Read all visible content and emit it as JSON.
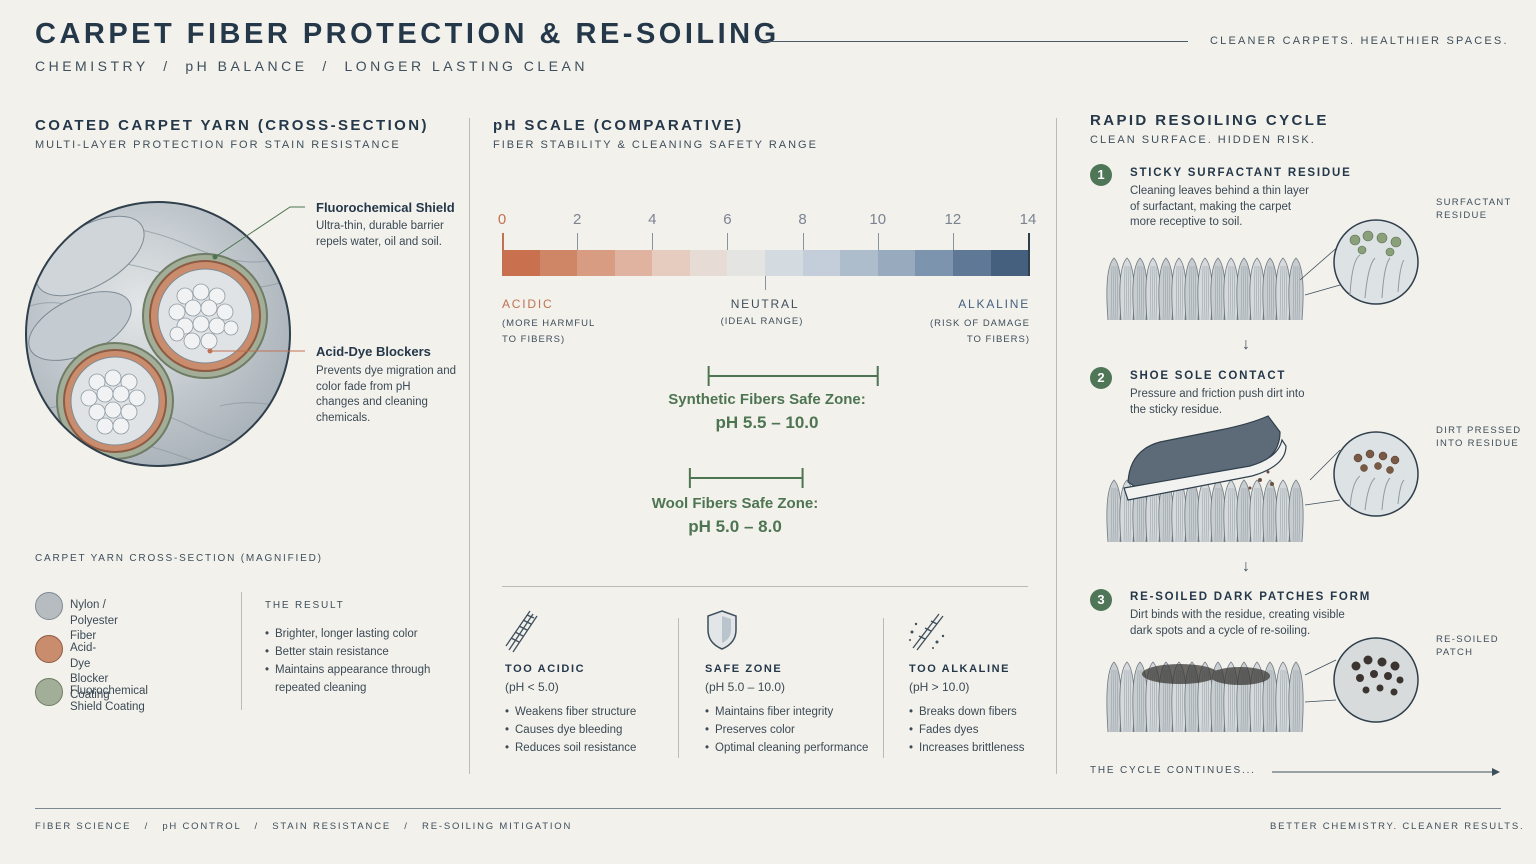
{
  "header": {
    "title": "CARPET FIBER PROTECTION & RE-SOILING",
    "subtitle": "CHEMISTRY  /  pH BALANCE  /  LONGER LASTING CLEAN",
    "tagline": "CLEANER CARPETS. HEALTHIER SPACES."
  },
  "yarn": {
    "title": "COATED CARPET YARN (CROSS-SECTION)",
    "subtitle": "MULTI-LAYER PROTECTION FOR STAIN RESISTANCE",
    "callouts": [
      {
        "title": "Fluorochemical Shield",
        "text": "Ultra-thin, durable barrier repels water, oil and soil."
      },
      {
        "title": "Acid-Dye Blockers",
        "text": "Prevents dye migration and color fade from pH changes and cleaning chemicals."
      }
    ],
    "caption": "CARPET YARN CROSS-SECTION (MAGNIFIED)",
    "legend": [
      {
        "label": "Nylon / Polyester Fiber",
        "color": "#b7bcc0"
      },
      {
        "label": "Acid-Dye Blocker Coating",
        "color": "#c98c6c"
      },
      {
        "label": "Fluorochemical Shield Coating",
        "color": "#a3ae98"
      }
    ],
    "result": {
      "title": "THE RESULT",
      "items": [
        "Brighter, longer lasting color",
        "Better stain resistance",
        "Maintains appearance through repeated cleaning"
      ]
    }
  },
  "ph": {
    "title": "pH SCALE (COMPARATIVE)",
    "subtitle": "FIBER STABILITY & CLEANING SAFETY RANGE",
    "ticks": [
      "0",
      "2",
      "4",
      "6",
      "8",
      "10",
      "12",
      "14"
    ],
    "colors": [
      "#c9714f",
      "#cf8667",
      "#d89c82",
      "#e0b3a0",
      "#e6cbbf",
      "#e7dcd5",
      "#e4e4e2",
      "#d4dbe0",
      "#c3ceda",
      "#aebdcc",
      "#97aabe",
      "#7c94ad",
      "#5f7896",
      "#45607f"
    ],
    "labels": {
      "acidic": "ACIDIC",
      "acidic_note": "(MORE HARMFUL TO FIBERS)",
      "neutral": "NEUTRAL",
      "neutral_note": "(IDEAL RANGE)",
      "alkaline": "ALKALINE",
      "alkaline_note": "(RISK OF DAMAGE TO FIBERS)"
    },
    "zones": [
      {
        "title": "Synthetic Fibers Safe Zone:",
        "value": "pH 5.5 – 10.0",
        "min": 5.5,
        "max": 10.0
      },
      {
        "title": "Wool Fibers Safe Zone:",
        "value": "pH 5.0 – 8.0",
        "min": 5.0,
        "max": 8.0
      }
    ],
    "categories": [
      {
        "title": "TOO ACIDIC",
        "range": "(pH < 5.0)",
        "icon": "fiber-damage-icon",
        "items": [
          "Weakens fiber structure",
          "Causes dye bleeding",
          "Reduces soil resistance"
        ]
      },
      {
        "title": "SAFE ZONE",
        "range": "(pH 5.0 – 10.0)",
        "icon": "shield-icon",
        "items": [
          "Maintains fiber integrity",
          "Preserves color",
          "Optimal cleaning performance"
        ]
      },
      {
        "title": "TOO ALKALINE",
        "range": "(pH > 10.0)",
        "icon": "brittle-fiber-icon",
        "items": [
          "Breaks down fibers",
          "Fades dyes",
          "Increases brittleness"
        ]
      }
    ]
  },
  "cycle": {
    "title": "RAPID RESOILING CYCLE",
    "subtitle": "CLEAN SURFACE. HIDDEN RISK.",
    "steps": [
      {
        "num": "1",
        "title": "STICKY SURFACTANT RESIDUE",
        "text": "Cleaning leaves behind a thin layer of surfactant, making the carpet more receptive to soil.",
        "callout": "SURFACTANT RESIDUE"
      },
      {
        "num": "2",
        "title": "SHOE SOLE CONTACT",
        "text": "Pressure and friction push dirt into the sticky residue.",
        "callout": "DIRT PRESSED INTO RESIDUE"
      },
      {
        "num": "3",
        "title": "RE-SOILED DARK PATCHES FORM",
        "text": "Dirt binds with the residue, creating visible dark spots and a cycle of re-soiling.",
        "callout": "RE-SOILED PATCH"
      }
    ],
    "continues": "THE CYCLE CONTINUES..."
  },
  "footer": {
    "left": "FIBER SCIENCE   /   pH CONTROL   /   STAIN RESISTANCE   /   RE-SOILING MITIGATION",
    "right": "BETTER CHEMISTRY. CLEANER RESULTS."
  }
}
